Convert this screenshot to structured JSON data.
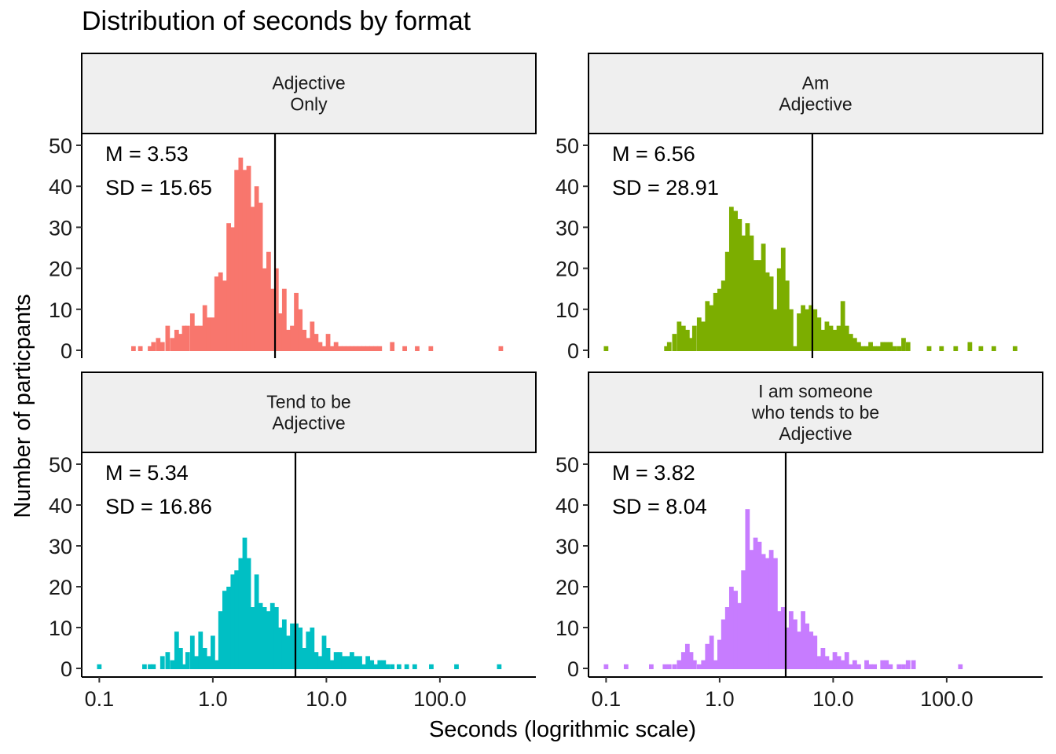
{
  "chart_data": {
    "type": "bar",
    "title": "Distribution of seconds by format",
    "xlabel": "Seconds (logrithmic scale)",
    "ylabel": "Number of particpants",
    "x_scale": "log10",
    "xlim": [
      0.07,
      700
    ],
    "ylim": [
      0,
      52
    ],
    "x_ticks": [
      0.1,
      1,
      10,
      100
    ],
    "x_tick_labels": [
      "0.1",
      "1.0",
      "10.0",
      "100.0"
    ],
    "y_ticks": [
      0,
      10,
      20,
      30,
      40,
      50
    ],
    "y_tick_labels": [
      "0",
      "10",
      "20",
      "30",
      "40",
      "50"
    ],
    "bins_per_decade": 25,
    "grid": false,
    "legend": "none",
    "panels": [
      {
        "label_lines": [
          "Adjective",
          "Only"
        ],
        "color": "#F8766D",
        "mean": 3.53,
        "mean_text": "M = 3.53",
        "sd_text": "SD = 15.65",
        "bins": [
          [
            0.2,
            1
          ],
          [
            0.23,
            1
          ],
          [
            0.28,
            1
          ],
          [
            0.3,
            2
          ],
          [
            0.33,
            3
          ],
          [
            0.36,
            2
          ],
          [
            0.4,
            6
          ],
          [
            0.44,
            3
          ],
          [
            0.48,
            5
          ],
          [
            0.52,
            4
          ],
          [
            0.56,
            6
          ],
          [
            0.6,
            6
          ],
          [
            0.66,
            9
          ],
          [
            0.72,
            6
          ],
          [
            0.78,
            6
          ],
          [
            0.85,
            11
          ],
          [
            0.92,
            8
          ],
          [
            1.0,
            8
          ],
          [
            1.08,
            18
          ],
          [
            1.17,
            19
          ],
          [
            1.27,
            17
          ],
          [
            1.38,
            31
          ],
          [
            1.5,
            30
          ],
          [
            1.62,
            44
          ],
          [
            1.76,
            47
          ],
          [
            1.91,
            44
          ],
          [
            2.07,
            45
          ],
          [
            2.24,
            35
          ],
          [
            2.43,
            40
          ],
          [
            2.63,
            36
          ],
          [
            2.85,
            20
          ],
          [
            3.1,
            24
          ],
          [
            3.35,
            15
          ],
          [
            3.63,
            20
          ],
          [
            3.93,
            9
          ],
          [
            4.26,
            15
          ],
          [
            4.62,
            5
          ],
          [
            5.01,
            6
          ],
          [
            5.43,
            14
          ],
          [
            5.89,
            10
          ],
          [
            6.38,
            5
          ],
          [
            6.92,
            3
          ],
          [
            7.5,
            7
          ],
          [
            8.13,
            4
          ],
          [
            8.81,
            2
          ],
          [
            9.55,
            1
          ],
          [
            10.35,
            4
          ],
          [
            11.22,
            1
          ],
          [
            12.16,
            2
          ],
          [
            13.18,
            1
          ],
          [
            14.29,
            1
          ],
          [
            15.49,
            1
          ],
          [
            16.79,
            1
          ],
          [
            18.2,
            1
          ],
          [
            19.72,
            1
          ],
          [
            21.38,
            1
          ],
          [
            23.17,
            1
          ],
          [
            25.12,
            1
          ],
          [
            27.23,
            1
          ],
          [
            29.51,
            1
          ],
          [
            38.02,
            2
          ],
          [
            48.98,
            1
          ],
          [
            63.1,
            1
          ],
          [
            83.18,
            1
          ],
          [
            344.0,
            1
          ]
        ]
      },
      {
        "label_lines": [
          "Am",
          "Adjective"
        ],
        "color": "#7CAE00",
        "mean": 6.56,
        "mean_text": "M = 6.56",
        "sd_text": "SD = 28.91",
        "bins": [
          [
            0.1,
            1
          ],
          [
            0.34,
            1
          ],
          [
            0.36,
            2
          ],
          [
            0.4,
            4
          ],
          [
            0.44,
            7
          ],
          [
            0.48,
            6
          ],
          [
            0.52,
            5
          ],
          [
            0.56,
            3
          ],
          [
            0.6,
            6
          ],
          [
            0.66,
            8
          ],
          [
            0.72,
            7
          ],
          [
            0.78,
            12
          ],
          [
            0.85,
            11
          ],
          [
            0.92,
            14
          ],
          [
            1.0,
            15
          ],
          [
            1.08,
            17
          ],
          [
            1.17,
            24
          ],
          [
            1.27,
            35
          ],
          [
            1.38,
            34
          ],
          [
            1.5,
            32
          ],
          [
            1.62,
            28
          ],
          [
            1.76,
            31
          ],
          [
            1.91,
            28
          ],
          [
            2.07,
            22
          ],
          [
            2.24,
            22
          ],
          [
            2.43,
            26
          ],
          [
            2.63,
            19
          ],
          [
            2.85,
            18
          ],
          [
            3.1,
            10
          ],
          [
            3.35,
            20
          ],
          [
            3.63,
            25
          ],
          [
            3.93,
            17
          ],
          [
            4.26,
            10
          ],
          [
            4.62,
            1
          ],
          [
            5.01,
            9
          ],
          [
            5.43,
            11
          ],
          [
            5.89,
            10
          ],
          [
            6.38,
            11
          ],
          [
            6.92,
            10
          ],
          [
            7.5,
            8
          ],
          [
            8.13,
            5
          ],
          [
            8.81,
            7
          ],
          [
            9.55,
            6
          ],
          [
            10.35,
            5
          ],
          [
            11.22,
            6
          ],
          [
            12.16,
            12
          ],
          [
            13.18,
            6
          ],
          [
            14.29,
            4
          ],
          [
            15.49,
            3
          ],
          [
            16.79,
            2
          ],
          [
            18.2,
            1
          ],
          [
            19.72,
            1
          ],
          [
            21.38,
            2
          ],
          [
            23.17,
            1
          ],
          [
            25.12,
            1
          ],
          [
            27.23,
            2
          ],
          [
            29.51,
            2
          ],
          [
            31.98,
            2
          ],
          [
            34.67,
            1
          ],
          [
            38.02,
            1
          ],
          [
            41.69,
            3
          ],
          [
            45.71,
            2
          ],
          [
            70.0,
            1
          ],
          [
            90.0,
            1
          ],
          [
            120.0,
            1
          ],
          [
            160.0,
            2
          ],
          [
            200.0,
            1
          ],
          [
            260.0,
            1
          ],
          [
            400.0,
            1
          ]
        ]
      },
      {
        "label_lines": [
          "Tend to be",
          "Adjective"
        ],
        "color": "#00BFC4",
        "mean": 5.34,
        "mean_text": "M = 5.34",
        "sd_text": "SD = 16.86",
        "bins": [
          [
            0.1,
            1
          ],
          [
            0.25,
            1
          ],
          [
            0.28,
            1
          ],
          [
            0.3,
            1
          ],
          [
            0.36,
            3
          ],
          [
            0.4,
            4
          ],
          [
            0.44,
            2
          ],
          [
            0.48,
            9
          ],
          [
            0.52,
            5
          ],
          [
            0.56,
            1
          ],
          [
            0.6,
            4
          ],
          [
            0.66,
            8
          ],
          [
            0.72,
            3
          ],
          [
            0.78,
            9
          ],
          [
            0.85,
            5
          ],
          [
            0.92,
            3
          ],
          [
            1.0,
            8
          ],
          [
            1.08,
            2
          ],
          [
            1.17,
            14
          ],
          [
            1.27,
            19
          ],
          [
            1.38,
            20
          ],
          [
            1.5,
            23
          ],
          [
            1.62,
            24
          ],
          [
            1.76,
            27
          ],
          [
            1.91,
            32
          ],
          [
            2.07,
            27
          ],
          [
            2.24,
            15
          ],
          [
            2.43,
            23
          ],
          [
            2.63,
            16
          ],
          [
            2.85,
            15
          ],
          [
            3.1,
            14
          ],
          [
            3.35,
            16
          ],
          [
            3.63,
            15
          ],
          [
            3.93,
            10
          ],
          [
            4.26,
            12
          ],
          [
            4.62,
            8
          ],
          [
            5.01,
            11
          ],
          [
            5.43,
            11
          ],
          [
            5.89,
            10
          ],
          [
            6.38,
            5
          ],
          [
            6.92,
            9
          ],
          [
            7.5,
            10
          ],
          [
            8.13,
            4
          ],
          [
            8.81,
            3
          ],
          [
            9.55,
            8
          ],
          [
            10.35,
            5
          ],
          [
            11.22,
            2
          ],
          [
            12.16,
            4
          ],
          [
            13.18,
            4
          ],
          [
            14.29,
            3
          ],
          [
            15.49,
            3
          ],
          [
            16.79,
            4
          ],
          [
            18.2,
            3
          ],
          [
            19.72,
            3
          ],
          [
            21.38,
            1
          ],
          [
            23.17,
            3
          ],
          [
            25.12,
            2
          ],
          [
            27.23,
            1
          ],
          [
            29.51,
            2
          ],
          [
            31.98,
            2
          ],
          [
            34.67,
            1
          ],
          [
            38.02,
            1
          ],
          [
            43.65,
            1
          ],
          [
            51.0,
            1
          ],
          [
            60.0,
            1
          ],
          [
            84.0,
            1
          ],
          [
            140.0,
            1
          ],
          [
            333.0,
            1
          ]
        ]
      },
      {
        "label_lines": [
          "I am someone",
          "who tends to be",
          "Adjective"
        ],
        "color": "#C77CFF",
        "mean": 3.82,
        "mean_text": "M = 3.82",
        "sd_text": "SD = 8.04",
        "bins": [
          [
            0.1,
            1
          ],
          [
            0.15,
            1
          ],
          [
            0.25,
            1
          ],
          [
            0.33,
            1
          ],
          [
            0.36,
            1
          ],
          [
            0.4,
            1
          ],
          [
            0.44,
            2
          ],
          [
            0.48,
            4
          ],
          [
            0.52,
            6
          ],
          [
            0.56,
            4
          ],
          [
            0.6,
            2
          ],
          [
            0.66,
            1
          ],
          [
            0.72,
            2
          ],
          [
            0.78,
            6
          ],
          [
            0.85,
            8
          ],
          [
            0.92,
            2
          ],
          [
            1.0,
            7
          ],
          [
            1.08,
            12
          ],
          [
            1.17,
            15
          ],
          [
            1.27,
            20
          ],
          [
            1.38,
            19
          ],
          [
            1.5,
            16
          ],
          [
            1.62,
            24
          ],
          [
            1.76,
            39
          ],
          [
            1.91,
            29
          ],
          [
            2.07,
            32
          ],
          [
            2.24,
            31
          ],
          [
            2.43,
            28
          ],
          [
            2.63,
            27
          ],
          [
            2.85,
            29
          ],
          [
            3.1,
            27
          ],
          [
            3.35,
            14
          ],
          [
            3.63,
            15
          ],
          [
            3.93,
            10
          ],
          [
            4.26,
            14
          ],
          [
            4.62,
            12
          ],
          [
            5.01,
            9
          ],
          [
            5.43,
            14
          ],
          [
            5.89,
            11
          ],
          [
            6.38,
            9
          ],
          [
            6.92,
            8
          ],
          [
            7.5,
            3
          ],
          [
            8.13,
            5
          ],
          [
            8.81,
            3
          ],
          [
            9.55,
            2
          ],
          [
            10.35,
            4
          ],
          [
            11.22,
            3
          ],
          [
            12.16,
            2
          ],
          [
            13.18,
            4
          ],
          [
            14.29,
            1
          ],
          [
            15.49,
            2
          ],
          [
            16.79,
            1
          ],
          [
            19.72,
            2
          ],
          [
            21.38,
            1
          ],
          [
            23.17,
            1
          ],
          [
            27.23,
            2
          ],
          [
            29.51,
            2
          ],
          [
            31.98,
            1
          ],
          [
            38.02,
            1
          ],
          [
            41.69,
            1
          ],
          [
            45.71,
            2
          ],
          [
            51.0,
            2
          ],
          [
            132.0,
            1
          ]
        ]
      }
    ]
  }
}
